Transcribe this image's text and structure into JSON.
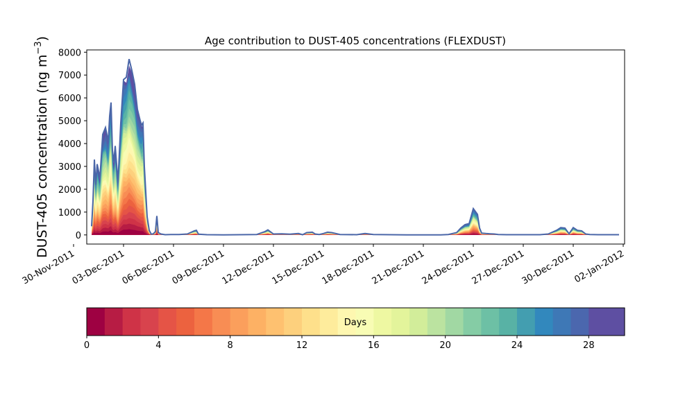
{
  "chart_data": {
    "type": "area",
    "title": "Age contribution to DUST-405 concentrations (FLEXDUST)",
    "ylabel_text": "DUST-405 concentration (ng m",
    "ylabel_unit_exp": "−3",
    "ylabel_close": ")",
    "xlim": [
      "2011-11-30T19:00",
      "2012-01-02T02:00"
    ],
    "ylim": [
      -400,
      8100
    ],
    "y_ticks": [
      0,
      1000,
      2000,
      3000,
      4000,
      5000,
      6000,
      7000,
      8000
    ],
    "x_ticks": [
      {
        "date": "2011-11-30",
        "label": "30-Nov-2011"
      },
      {
        "date": "2011-12-03",
        "label": "03-Dec-2011"
      },
      {
        "date": "2011-12-06",
        "label": "06-Dec-2011"
      },
      {
        "date": "2011-12-09",
        "label": "09-Dec-2011"
      },
      {
        "date": "2011-12-12",
        "label": "12-Dec-2011"
      },
      {
        "date": "2011-12-15",
        "label": "15-Dec-2011"
      },
      {
        "date": "2011-12-18",
        "label": "18-Dec-2011"
      },
      {
        "date": "2011-12-21",
        "label": "21-Dec-2011"
      },
      {
        "date": "2011-12-24",
        "label": "24-Dec-2011"
      },
      {
        "date": "2011-12-27",
        "label": "27-Dec-2011"
      },
      {
        "date": "2011-12-30",
        "label": "30-Dec-2011"
      },
      {
        "date": "2012-01-02",
        "label": "02-Jan-2012"
      }
    ],
    "total_series": {
      "x": [
        "2011-12-01T02:00",
        "2011-12-01T04:00",
        "2011-12-01T06:00",
        "2011-12-01T08:00",
        "2011-12-01T10:00",
        "2011-12-01T14:00",
        "2011-12-01T18:00",
        "2011-12-01T22:00",
        "2011-12-02T02:00",
        "2011-12-02T04:00",
        "2011-12-02T06:00",
        "2011-12-02T08:00",
        "2011-12-02T10:00",
        "2011-12-02T12:00",
        "2011-12-02T16:00",
        "2011-12-02T20:00",
        "2011-12-03T00:00",
        "2011-12-03T04:00",
        "2011-12-03T08:00",
        "2011-12-03T12:00",
        "2011-12-03T16:00",
        "2011-12-03T20:00",
        "2011-12-04T00:00",
        "2011-12-04T02:00",
        "2011-12-04T04:00",
        "2011-12-04T06:00",
        "2011-12-04T10:00",
        "2011-12-04T13:00",
        "2011-12-04T16:00",
        "2011-12-04T19:00",
        "2011-12-04T22:00",
        "2011-12-05T00:00",
        "2011-12-05T02:00",
        "2011-12-05T06:00",
        "2011-12-05T12:00",
        "2011-12-05T20:00",
        "2011-12-06T08:00",
        "2011-12-06T20:00",
        "2011-12-07T06:00",
        "2011-12-07T09:00",
        "2011-12-07T12:00",
        "2011-12-08T00:00",
        "2011-12-09T00:00",
        "2011-12-10T00:00",
        "2011-12-11T00:00",
        "2011-12-11T12:00",
        "2011-12-11T16:00",
        "2011-12-12T00:00",
        "2011-12-12T12:00",
        "2011-12-13T00:00",
        "2011-12-13T12:00",
        "2011-12-13T18:00",
        "2011-12-14T00:00",
        "2011-12-14T08:00",
        "2011-12-14T12:00",
        "2011-12-14T18:00",
        "2011-12-15T00:00",
        "2011-12-15T06:00",
        "2011-12-15T12:00",
        "2011-12-16T00:00",
        "2011-12-17T00:00",
        "2011-12-17T12:00",
        "2011-12-18T00:00",
        "2011-12-19T00:00",
        "2011-12-20T00:00",
        "2011-12-21T00:00",
        "2011-12-22T00:00",
        "2011-12-22T12:00",
        "2011-12-23T00:00",
        "2011-12-23T06:00",
        "2011-12-23T12:00",
        "2011-12-23T18:00",
        "2011-12-24T00:00",
        "2011-12-24T06:00",
        "2011-12-24T09:00",
        "2011-12-24T12:00",
        "2011-12-24T18:00",
        "2011-12-25T00:00",
        "2011-12-25T06:00",
        "2011-12-25T12:00",
        "2011-12-26T00:00",
        "2011-12-27T00:00",
        "2011-12-28T00:00",
        "2011-12-28T12:00",
        "2011-12-29T00:00",
        "2011-12-29T06:00",
        "2011-12-29T12:00",
        "2011-12-29T18:00",
        "2011-12-30T00:00",
        "2011-12-30T06:00",
        "2011-12-30T12:00",
        "2011-12-30T18:00",
        "2011-12-31T00:00",
        "2011-12-31T12:00",
        "2012-01-01T00:00",
        "2012-01-01T12:00",
        "2012-01-01T18:00"
      ],
      "y": [
        380,
        1500,
        3300,
        2200,
        3100,
        2500,
        4400,
        4700,
        4100,
        5200,
        5800,
        3700,
        3200,
        3900,
        2300,
        4900,
        6800,
        6900,
        7700,
        7200,
        6600,
        5500,
        5000,
        4800,
        4900,
        3000,
        800,
        200,
        30,
        50,
        150,
        830,
        100,
        40,
        10,
        20,
        20,
        40,
        180,
        200,
        30,
        10,
        0,
        10,
        20,
        150,
        220,
        40,
        50,
        30,
        60,
        10,
        100,
        120,
        40,
        20,
        60,
        120,
        100,
        20,
        10,
        60,
        20,
        10,
        0,
        0,
        0,
        20,
        100,
        300,
        450,
        500,
        1150,
        900,
        300,
        80,
        60,
        50,
        40,
        20,
        10,
        10,
        10,
        40,
        200,
        320,
        300,
        50,
        320,
        200,
        180,
        40,
        20,
        10,
        10,
        10,
        10
      ]
    },
    "colorbar": {
      "label": "Days",
      "range": [
        0,
        30
      ],
      "ticks": [
        0,
        4,
        8,
        12,
        16,
        20,
        24,
        28
      ],
      "colors": [
        "#9e0142",
        "#b71c44",
        "#cf3347",
        "#d8434d",
        "#e55446",
        "#ec623f",
        "#f47748",
        "#f88d54",
        "#fb9f5c",
        "#fdb164",
        "#fec170",
        "#fdd07d",
        "#fee08b",
        "#feec9c",
        "#fef7b0",
        "#f8fcb4",
        "#eef8a2",
        "#e3f49b",
        "#d2ed9a",
        "#bbe3a0",
        "#a1d8a3",
        "#85cca5",
        "#6dc0a5",
        "#58b2a5",
        "#439eb0",
        "#3288bd",
        "#3e78b6",
        "#4b67ae",
        "#5e4fa2",
        "#5e4fa2"
      ]
    }
  }
}
